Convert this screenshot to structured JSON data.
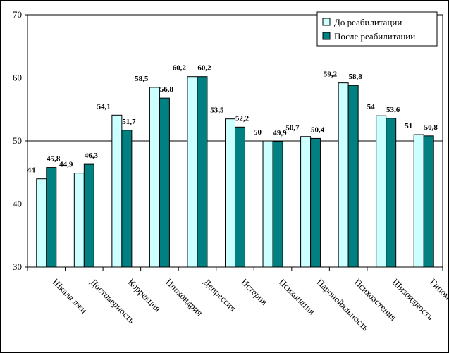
{
  "chart_data": {
    "type": "bar",
    "categories": [
      "Шкала лжи",
      "Достоверность",
      "Коррекция",
      "Ипохондрия",
      "Депрессия",
      "Истерия",
      "Психопатия",
      "Паронойяльность",
      "Психоастения",
      "Шизоидность",
      "Гипомания"
    ],
    "series": [
      {
        "name": "До реабилитации",
        "color": "#ccffff",
        "values": [
          44,
          44.9,
          54.1,
          58.5,
          60.2,
          53.5,
          50,
          50.7,
          59.2,
          54,
          51
        ],
        "labels": [
          "44",
          "44,9",
          "54,1",
          "58,5",
          "60,2",
          "53,5",
          "50",
          "50,7",
          "59,2",
          "54",
          "51"
        ]
      },
      {
        "name": "После реабилитации",
        "color": "#008080",
        "values": [
          45.8,
          46.3,
          51.7,
          56.8,
          60.2,
          52.2,
          49.9,
          50.4,
          58.8,
          53.6,
          50.8
        ],
        "labels": [
          "45,8",
          "46,3",
          "51,7",
          "56,8",
          "60,2",
          "52,2",
          "49,9",
          "50,4",
          "58,8",
          "53,6",
          "50,8"
        ]
      }
    ],
    "yticks": [
      "30",
      "40",
      "50",
      "60",
      "70"
    ],
    "ylim": [
      30,
      70
    ],
    "grid": true,
    "legend_position": "top-right",
    "title": "",
    "xlabel": "",
    "ylabel": ""
  }
}
